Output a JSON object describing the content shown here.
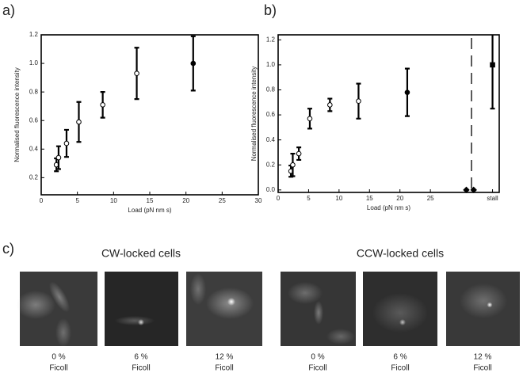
{
  "chart_data": [
    {
      "type": "scatter",
      "panel_label": "a)",
      "ylabel": "Normalised fluorescence intensity",
      "xlabel": "Load (pN nm s)",
      "xlim": [
        0,
        30
      ],
      "xticks": [
        0,
        5,
        10,
        15,
        20,
        25,
        30
      ],
      "ylim": [
        0.08,
        1.2
      ],
      "yticks": [
        0.2,
        0.4,
        0.6,
        0.8,
        {
          "value": 1,
          "label": "1.0"
        },
        1.2
      ],
      "series": [
        {
          "x": [
            2.1,
            2.4,
            3.5,
            5.2,
            8.5,
            13.2,
            21
          ],
          "values": [
            0.29,
            0.34,
            0.44,
            0.59,
            0.71,
            0.93,
            1.0
          ],
          "errors": [
            0.045,
            0.08,
            0.095,
            0.14,
            0.09,
            0.18,
            0.19
          ],
          "marker": "circle",
          "marker_fill": [
            "#ffffff",
            "#ffffff",
            "#ffffff",
            "#ffffff",
            "#ffffff",
            "#ffffff",
            "#000000"
          ],
          "color": "#000000"
        }
      ]
    },
    {
      "type": "scatter",
      "panel_label": "b)",
      "ylabel": "Normalised fluorescence intensity",
      "xlabel": "Load (pN nm s)",
      "xlim": [
        0,
        36.3
      ],
      "xticks": [
        0,
        5,
        10,
        15,
        20,
        25,
        {
          "value": 35.2,
          "label": "stall"
        }
      ],
      "ylim": [
        -0.02,
        1.24
      ],
      "yticks": [
        {
          "value": 0,
          "label": "0.0"
        },
        0.2,
        0.4,
        0.6,
        0.8,
        {
          "value": 1,
          "label": "1.0"
        },
        1.2
      ],
      "series": [
        {
          "x": [
            2.1,
            2.4,
            3.4,
            5.2,
            8.5,
            13.2,
            21.2
          ],
          "values": [
            0.15,
            0.2,
            0.29,
            0.57,
            0.68,
            0.71,
            0.78
          ],
          "errors": [
            0.045,
            0.09,
            0.05,
            0.08,
            0.05,
            0.14,
            0.19
          ],
          "marker": "circle",
          "marker_fill": [
            "#ffffff",
            "#ffffff",
            "#ffffff",
            "#ffffff",
            "#ffffff",
            "#ffffff",
            "#000000"
          ],
          "color": "#000000"
        },
        {
          "x": [
            35.2
          ],
          "values": [
            1.0
          ],
          "errors": [
            0.35
          ],
          "marker": "square",
          "marker_fill": [
            "#000000"
          ],
          "color": "#000000"
        },
        {
          "x": [
            30.9,
            32.1
          ],
          "values": [
            0,
            0
          ],
          "marker": "diamond",
          "marker_fill": [
            "#000000",
            "#000000"
          ],
          "color": "#000000"
        }
      ]
    }
  ],
  "micrographs": {
    "panel_label": "c)",
    "groups": [
      {
        "title": "CW-locked cells",
        "captions": [
          [
            "0 %",
            "Ficoll"
          ],
          [
            "6 %",
            "Ficoll"
          ],
          [
            "12 %",
            "Ficoll"
          ]
        ]
      },
      {
        "title": "CCW-locked cells",
        "captions": [
          [
            "0 %",
            "Ficoll"
          ],
          [
            "6 %",
            "Ficoll"
          ],
          [
            "12 %",
            "Ficoll"
          ]
        ]
      }
    ]
  }
}
